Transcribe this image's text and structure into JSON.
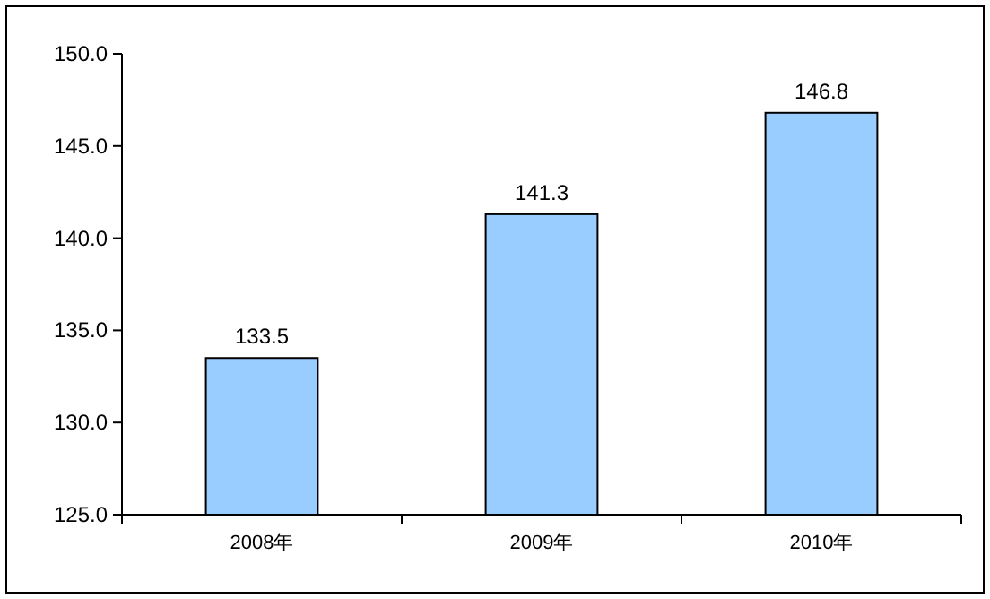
{
  "chart_data": {
    "type": "bar",
    "categories": [
      "2008年",
      "2009年",
      "2010年"
    ],
    "values": [
      133.5,
      141.3,
      146.8
    ],
    "color": "#99ccff",
    "ylim": [
      125,
      150
    ],
    "yticks": [
      {
        "value": 125,
        "label": "125.0"
      },
      {
        "value": 130,
        "label": "130.0"
      },
      {
        "value": 135,
        "label": "135.0"
      },
      {
        "value": 140,
        "label": "140.0"
      },
      {
        "value": 145,
        "label": "145.0"
      },
      {
        "value": 150,
        "label": "150.0"
      }
    ],
    "data_labels": true
  }
}
